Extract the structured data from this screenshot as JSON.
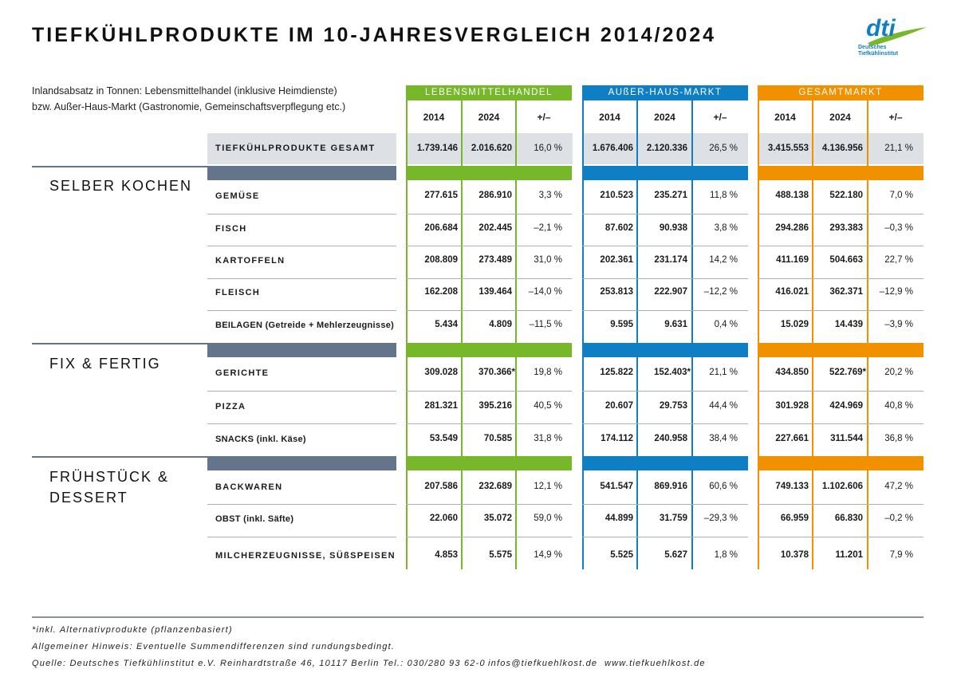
{
  "title": "TIEFKÜHLPRODUKTE IM 10-JAHRESVERGLEICH 2014/2024",
  "logo": {
    "mark": "dti",
    "line1": "Deutsches",
    "line2": "Tiefkühlinstitut"
  },
  "subtitle": {
    "line1": "Inlandsabsatz in Tonnen: Lebensmittelhandel (inklusive Heimdienste)",
    "line2": "bzw. Außer-Haus-Markt (Gastronomie, Gemeinschaftsverpflegung etc.)"
  },
  "colors": {
    "lebensmittelhandel": "#76b82a",
    "ausser_haus": "#0f7fc5",
    "gesamt": "#f29100",
    "section_grey": "#64748a"
  },
  "groups": [
    {
      "label": "LEBENSMITTELHANDEL",
      "y2014": "2014",
      "y2024": "2024",
      "diff": "+/–"
    },
    {
      "label": "AUßER-HAUS-MARKT",
      "y2014": "2014",
      "y2024": "2024",
      "diff": "+/–"
    },
    {
      "label": "GESAMTMARKT",
      "y2014": "2014",
      "y2024": "2024",
      "diff": "+/–"
    }
  ],
  "total": {
    "label": "TIEFKÜHLPRODUKTE GESAMT",
    "cells": [
      "1.739.146",
      "2.016.620",
      "16,0 %",
      "1.676.406",
      "2.120.336",
      "26,5 %",
      "3.415.553",
      "4.136.956",
      "21,1 %"
    ]
  },
  "sections": [
    {
      "title": "SELBER KOCHEN",
      "title2": ""
    },
    {
      "title": "FIX & FERTIG",
      "title2": ""
    },
    {
      "title": "FRÜHSTÜCK &",
      "title2": "DESSERT"
    }
  ],
  "rows": [
    {
      "label": "GEMÜSE",
      "cells": [
        "277.615",
        "286.910",
        "3,3 %",
        "210.523",
        "235.271",
        "11,8 %",
        "488.138",
        "522.180",
        "7,0 %"
      ]
    },
    {
      "label": "FISCH",
      "cells": [
        "206.684",
        "202.445",
        "–2,1 %",
        "87.602",
        "90.938",
        "3,8 %",
        "294.286",
        "293.383",
        "–0,3 %"
      ]
    },
    {
      "label": "KARTOFFELN",
      "cells": [
        "208.809",
        "273.489",
        "31,0 %",
        "202.361",
        "231.174",
        "14,2 %",
        "411.169",
        "504.663",
        "22,7 %"
      ]
    },
    {
      "label": "FLEISCH",
      "cells": [
        "162.208",
        "139.464",
        "–14,0 %",
        "253.813",
        "222.907",
        "–12,2 %",
        "416.021",
        "362.371",
        "–12,9 %"
      ]
    },
    {
      "label": "BEILAGEN  (Getreide + Mehlerzeugnisse)",
      "cells": [
        "5.434",
        "4.809",
        "–11,5 %",
        "9.595",
        "9.631",
        "0,4 %",
        "15.029",
        "14.439",
        "–3,9 %"
      ]
    },
    {
      "label": "GERICHTE",
      "cells": [
        "309.028",
        "370.366*",
        "19,8 %",
        "125.822",
        "152.403*",
        "21,1 %",
        "434.850",
        "522.769*",
        "20,2 %"
      ]
    },
    {
      "label": "PIZZA",
      "cells": [
        "281.321",
        "395.216",
        "40,5 %",
        "20.607",
        "29.753",
        "44,4 %",
        "301.928",
        "424.969",
        "40,8 %"
      ]
    },
    {
      "label": "SNACKS (inkl. Käse)",
      "cells": [
        "53.549",
        "70.585",
        "31,8 %",
        "174.112",
        "240.958",
        "38,4 %",
        "227.661",
        "311.544",
        "36,8 %"
      ]
    },
    {
      "label": "BACKWAREN",
      "cells": [
        "207.586",
        "232.689",
        "12,1 %",
        "541.547",
        "869.916",
        "60,6 %",
        "749.133",
        "1.102.606",
        "47,2 %"
      ]
    },
    {
      "label": "OBST (inkl. Säfte)",
      "cells": [
        "22.060",
        "35.072",
        "59,0 %",
        "44.899",
        "31.759",
        "–29,3 %",
        "66.959",
        "66.830",
        "–0,2 %"
      ]
    },
    {
      "label": "MILCHERZEUGNISSE, SÜßSPEISEN",
      "cells": [
        "4.853",
        "5.575",
        "14,9 %",
        "5.525",
        "5.627",
        "1,8 %",
        "10.378",
        "11.201",
        "7,9 %"
      ]
    }
  ],
  "footer": {
    "note1": "*inkl. Alternativprodukte (pflanzenbasiert)",
    "note2": "Allgemeiner Hinweis: Eventuelle Summendifferenzen sind rundungsbedingt.",
    "source": "Quelle: Deutsches Tiefkühlinstitut e.V.",
    "address": "Reinhardtstraße 46, 10117 Berlin",
    "phone": "Tel.: 030/280 93 62-0",
    "email": "infos@tiefkuehlkost.de",
    "web": "www.tiefkuehlkost.de"
  }
}
